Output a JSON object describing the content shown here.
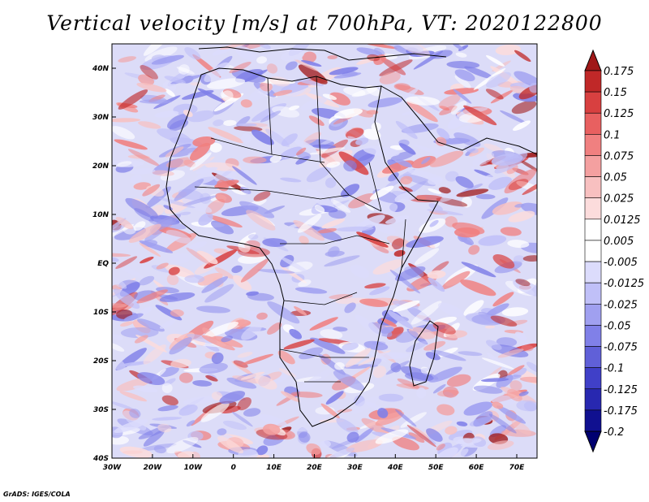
{
  "title": "Vertical velocity [m/s] at 700hPa, VT: 2020122800",
  "credit": "GrADS: IGES/COLA",
  "map": {
    "lon_range": [
      -30,
      75
    ],
    "lat_range": [
      -40,
      45
    ],
    "lon_ticks": [
      "30W",
      "20W",
      "10W",
      "0",
      "10E",
      "20E",
      "30E",
      "40E",
      "50E",
      "60E",
      "70E"
    ],
    "lat_ticks": [
      "40N",
      "30N",
      "20N",
      "10N",
      "EQ",
      "10S",
      "20S",
      "30S",
      "40S"
    ],
    "field_name": "vertical velocity",
    "field_units": "m/s",
    "level": "700hPa"
  },
  "colorbar": {
    "labels": [
      "0.175",
      "0.15",
      "0.125",
      "0.1",
      "0.075",
      "0.05",
      "0.025",
      "0.0125",
      "0.005",
      "-0.005",
      "-0.0125",
      "-0.025",
      "-0.05",
      "-0.075",
      "-0.1",
      "-0.125",
      "-0.175",
      "-0.2"
    ],
    "colors": [
      "#a01818",
      "#c02828",
      "#d84040",
      "#e86060",
      "#f08080",
      "#f4a0a0",
      "#f8c0c0",
      "#fcdcdc",
      "#ffffff",
      "#ffffff",
      "#dcdcfc",
      "#c0c0f8",
      "#a0a0f0",
      "#8080e8",
      "#6060d8",
      "#4040c8",
      "#2828b0",
      "#101090",
      "#000070"
    ]
  }
}
